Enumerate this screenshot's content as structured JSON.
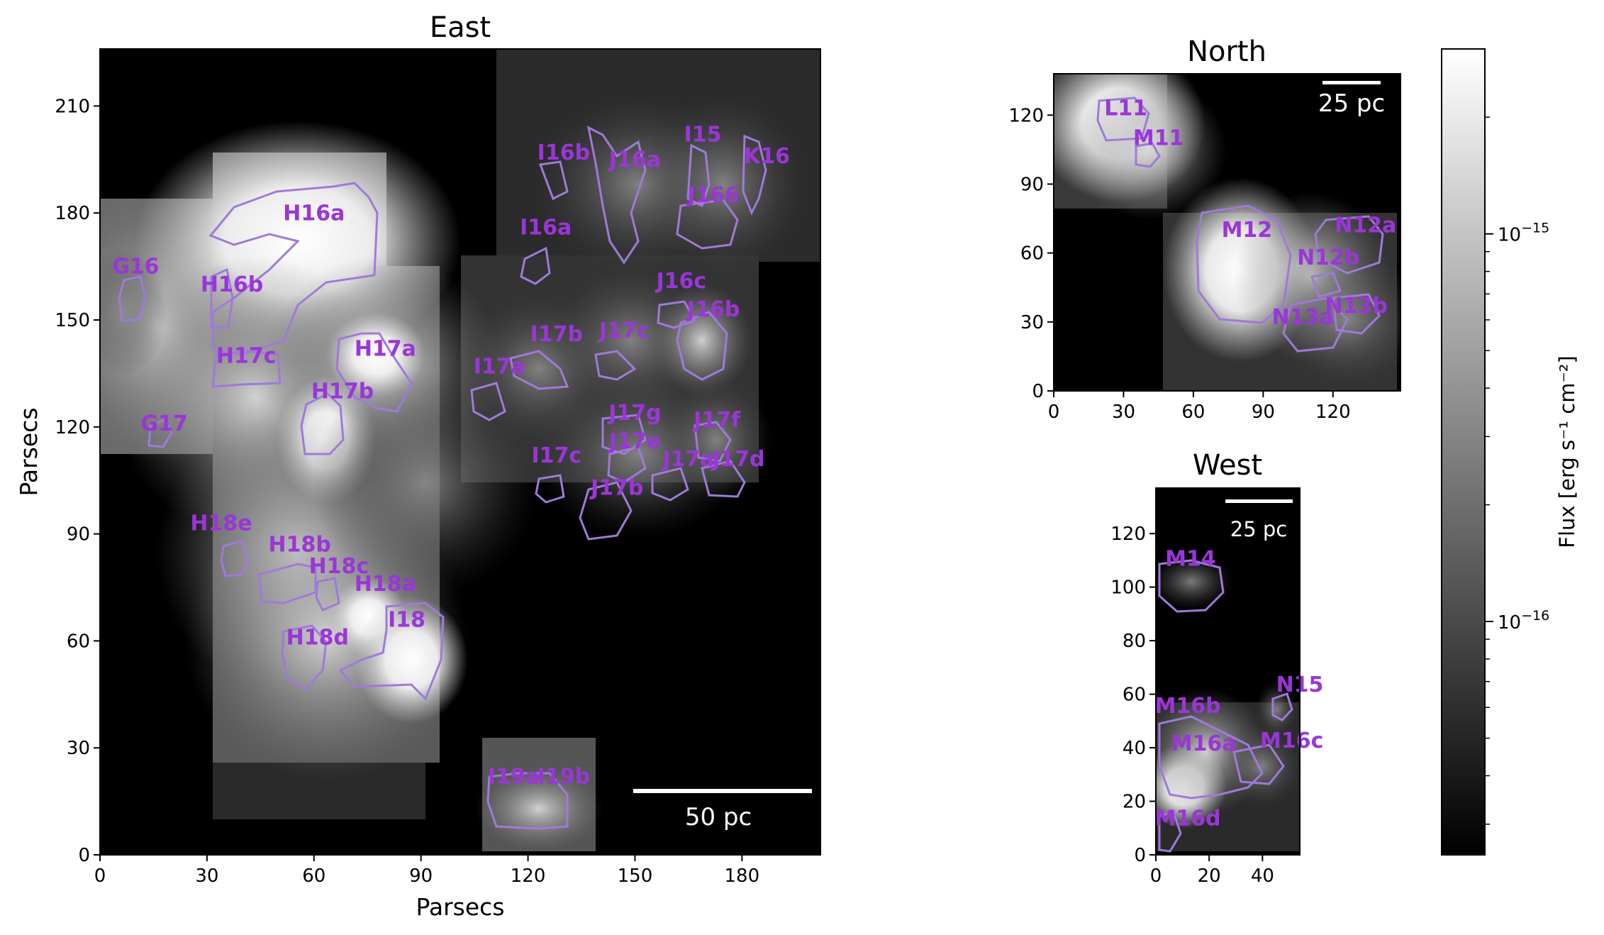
{
  "chart_data": [
    {
      "type": "heatmap",
      "title": "East",
      "xlabel": "Parsecs",
      "ylabel": "Parsecs",
      "xlim": [
        0,
        202
      ],
      "ylim": [
        0,
        226
      ],
      "xticks": [
        0,
        30,
        60,
        90,
        120,
        150,
        180
      ],
      "yticks": [
        0,
        30,
        60,
        90,
        120,
        150,
        180,
        210
      ],
      "scale_bar": {
        "label": "50 pc",
        "length_pc": 50
      },
      "regions": [
        {
          "label": "G16",
          "x": 10,
          "y": 163
        },
        {
          "label": "H16a",
          "x": 60,
          "y": 178
        },
        {
          "label": "H16b",
          "x": 37,
          "y": 158
        },
        {
          "label": "H17c",
          "x": 41,
          "y": 138
        },
        {
          "label": "H17a",
          "x": 80,
          "y": 140
        },
        {
          "label": "H17b",
          "x": 68,
          "y": 128
        },
        {
          "label": "G17",
          "x": 18,
          "y": 119
        },
        {
          "label": "H18e",
          "x": 34,
          "y": 91
        },
        {
          "label": "H18b",
          "x": 56,
          "y": 85
        },
        {
          "label": "H18c",
          "x": 67,
          "y": 79
        },
        {
          "label": "H18a",
          "x": 80,
          "y": 74
        },
        {
          "label": "I18",
          "x": 86,
          "y": 64
        },
        {
          "label": "H18d",
          "x": 61,
          "y": 59
        },
        {
          "label": "I16b",
          "x": 130,
          "y": 195
        },
        {
          "label": "J16a",
          "x": 150,
          "y": 193
        },
        {
          "label": "I15",
          "x": 169,
          "y": 200
        },
        {
          "label": "K16",
          "x": 187,
          "y": 194
        },
        {
          "label": "J166",
          "x": 172,
          "y": 183
        },
        {
          "label": "I16a",
          "x": 125,
          "y": 174
        },
        {
          "label": "J16c",
          "x": 163,
          "y": 159
        },
        {
          "label": "J16b",
          "x": 172,
          "y": 151
        },
        {
          "label": "I17b",
          "x": 128,
          "y": 144
        },
        {
          "label": "J17c",
          "x": 147,
          "y": 145
        },
        {
          "label": "I17a",
          "x": 112,
          "y": 135
        },
        {
          "label": "J17g",
          "x": 150,
          "y": 122
        },
        {
          "label": "J17f",
          "x": 173,
          "y": 120
        },
        {
          "label": "J17e",
          "x": 150,
          "y": 114
        },
        {
          "label": "J17a",
          "x": 165,
          "y": 109
        },
        {
          "label": "J17d",
          "x": 179,
          "y": 109
        },
        {
          "label": "I17c",
          "x": 128,
          "y": 110
        },
        {
          "label": "J17b",
          "x": 145,
          "y": 101
        },
        {
          "label": "I19a",
          "x": 116,
          "y": 20
        },
        {
          "label": "I19b",
          "x": 130,
          "y": 20
        }
      ]
    },
    {
      "type": "heatmap",
      "title": "North",
      "xlim": [
        0,
        149
      ],
      "ylim": [
        0,
        138
      ],
      "xticks": [
        0,
        30,
        60,
        90,
        120
      ],
      "yticks": [
        0,
        30,
        60,
        90,
        120
      ],
      "scale_bar": {
        "label": "25 pc",
        "length_pc": 25
      },
      "regions": [
        {
          "label": "L11",
          "x": 31,
          "y": 120
        },
        {
          "label": "M11",
          "x": 45,
          "y": 107
        },
        {
          "label": "M12",
          "x": 83,
          "y": 67
        },
        {
          "label": "N12a",
          "x": 134,
          "y": 69
        },
        {
          "label": "N12b",
          "x": 118,
          "y": 55
        },
        {
          "label": "N13b",
          "x": 130,
          "y": 34
        },
        {
          "label": "N13a",
          "x": 107,
          "y": 29
        }
      ]
    },
    {
      "type": "heatmap",
      "title": "West",
      "xlim": [
        0,
        54
      ],
      "ylim": [
        0,
        137
      ],
      "xticks": [
        0,
        20,
        40
      ],
      "yticks": [
        0,
        20,
        40,
        60,
        80,
        100,
        120
      ],
      "scale_bar": {
        "label": "25 pc",
        "length_pc": 25
      },
      "regions": [
        {
          "label": "M14",
          "x": 13,
          "y": 108
        },
        {
          "label": "N15",
          "x": 54,
          "y": 61
        },
        {
          "label": "M16b",
          "x": 12,
          "y": 53
        },
        {
          "label": "M16a",
          "x": 18,
          "y": 39
        },
        {
          "label": "M16c",
          "x": 51,
          "y": 40
        },
        {
          "label": "M16d",
          "x": 12,
          "y": 11
        }
      ]
    }
  ],
  "colorbar": {
    "label": "Flux [erg s⁻¹ cm⁻²]",
    "scale": "log",
    "range": [
      2.5e-17,
      3e-15
    ],
    "major_ticks": [
      {
        "value": 1e-15,
        "label_base": "10",
        "label_exp": "−15"
      },
      {
        "value": 1e-16,
        "label_base": "10",
        "label_exp": "−16"
      }
    ],
    "colormap": "gray"
  }
}
